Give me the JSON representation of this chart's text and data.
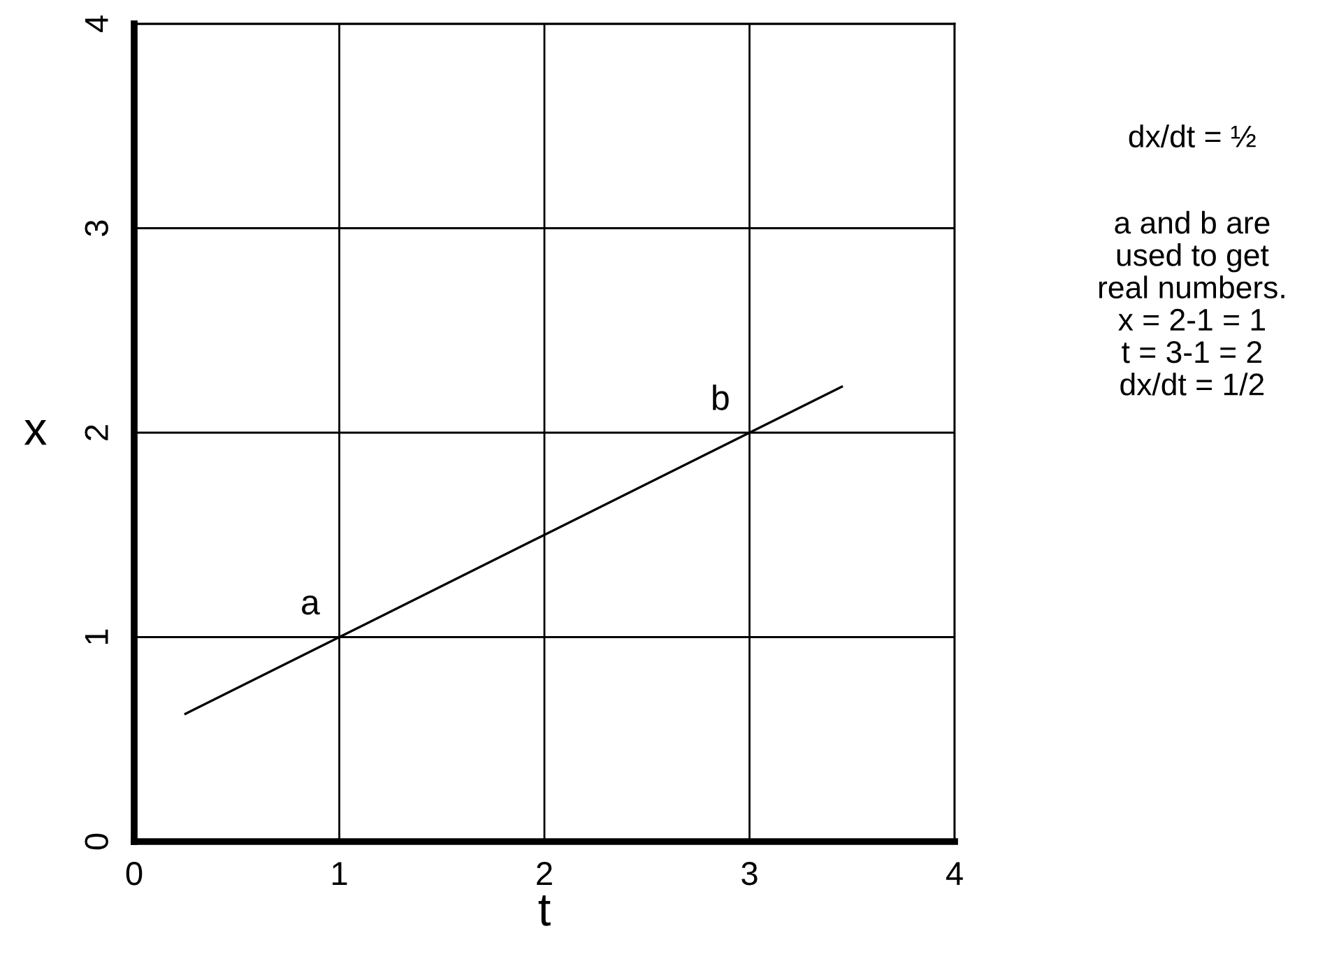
{
  "chart_data": {
    "type": "line",
    "xlabel": "t",
    "ylabel": "x",
    "x": [
      0.25,
      1,
      3,
      3.45
    ],
    "series": [
      {
        "color": "#000000",
        "values": [
          0.625,
          1,
          2,
          2.225
        ]
      }
    ],
    "xlim": [
      0,
      4
    ],
    "ylim": [
      0,
      4
    ],
    "xticks": [
      0,
      1,
      2,
      3,
      4
    ],
    "yticks": [
      0,
      1,
      2,
      3,
      4
    ],
    "grid": true,
    "marker": "none",
    "line_style": "solid",
    "annotations": [
      {
        "text": "a",
        "x": 1,
        "y": 1
      },
      {
        "text": "b",
        "x": 3,
        "y": 2
      },
      "dx/dt = ½",
      "a and b are\nused to get\nreal numbers.\nx = 2-1 = 1\nt = 3-1 = 2\ndx/dt = 1/2"
    ]
  }
}
